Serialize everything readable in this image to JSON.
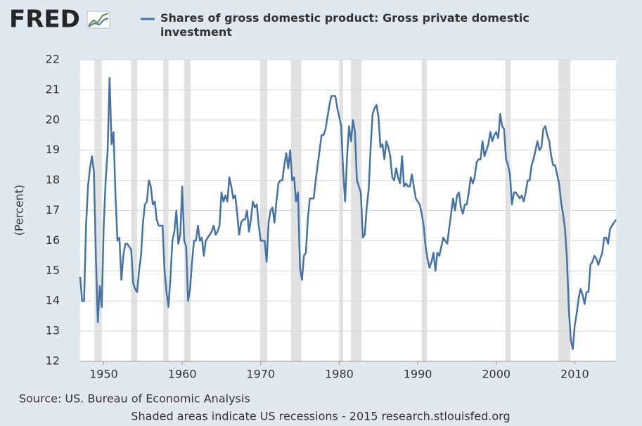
{
  "logo": "FRED",
  "chart_data": {
    "type": "line",
    "ylabel": "(Percent)",
    "source": "Source: US. Bureau of Economic Analysis",
    "note": "Shaded areas indicate US recessions - 2015 research.stlouisfed.org",
    "xlim": [
      1947,
      2015.25
    ],
    "xticks": [
      1950,
      1960,
      1970,
      1980,
      1990,
      2000,
      2010
    ],
    "ylim": [
      12,
      22
    ],
    "yticks": [
      12,
      13,
      14,
      15,
      16,
      17,
      18,
      19,
      20,
      21,
      22
    ],
    "grid": true,
    "recession_color": "#e1e1e1",
    "recessions": [
      [
        1948.83,
        1949.75
      ],
      [
        1953.5,
        1954.25
      ],
      [
        1957.58,
        1958.25
      ],
      [
        1960.25,
        1961.08
      ],
      [
        1969.92,
        1970.83
      ],
      [
        1973.83,
        1975.17
      ],
      [
        1980.0,
        1980.5
      ],
      [
        1981.5,
        1982.83
      ],
      [
        1990.5,
        1991.17
      ],
      [
        2001.17,
        2001.83
      ],
      [
        2007.92,
        2009.42
      ]
    ],
    "x": [
      1947,
      1947.25,
      1947.5,
      1947.75,
      1948,
      1948.25,
      1948.5,
      1948.75,
      1949,
      1949.25,
      1949.5,
      1949.75,
      1950,
      1950.25,
      1950.5,
      1950.75,
      1951,
      1951.25,
      1951.5,
      1951.75,
      1952,
      1952.25,
      1952.5,
      1952.75,
      1953,
      1953.25,
      1953.5,
      1953.75,
      1954,
      1954.25,
      1954.5,
      1954.75,
      1955,
      1955.25,
      1955.5,
      1955.75,
      1956,
      1956.25,
      1956.5,
      1956.75,
      1957,
      1957.25,
      1957.5,
      1957.75,
      1958,
      1958.25,
      1958.5,
      1958.75,
      1959,
      1959.25,
      1959.5,
      1959.75,
      1960,
      1960.25,
      1960.5,
      1960.75,
      1961,
      1961.25,
      1961.5,
      1961.75,
      1962,
      1962.25,
      1962.5,
      1962.75,
      1963,
      1963.25,
      1963.5,
      1963.75,
      1964,
      1964.25,
      1964.5,
      1964.75,
      1965,
      1965.25,
      1965.5,
      1965.75,
      1966,
      1966.25,
      1966.5,
      1966.75,
      1967,
      1967.25,
      1967.5,
      1967.75,
      1968,
      1968.25,
      1968.5,
      1968.75,
      1969,
      1969.25,
      1969.5,
      1969.75,
      1970,
      1970.25,
      1970.5,
      1970.75,
      1971,
      1971.25,
      1971.5,
      1971.75,
      1972,
      1972.25,
      1972.5,
      1972.75,
      1973,
      1973.25,
      1973.5,
      1973.75,
      1974,
      1974.25,
      1974.5,
      1974.75,
      1975,
      1975.25,
      1975.5,
      1975.75,
      1976,
      1976.25,
      1976.5,
      1976.75,
      1977,
      1977.25,
      1977.5,
      1977.75,
      1978,
      1978.25,
      1978.5,
      1978.75,
      1979,
      1979.25,
      1979.5,
      1979.75,
      1980,
      1980.25,
      1980.5,
      1980.75,
      1981,
      1981.25,
      1981.5,
      1981.75,
      1982,
      1982.25,
      1982.5,
      1982.75,
      1983,
      1983.25,
      1983.5,
      1983.75,
      1984,
      1984.25,
      1984.5,
      1984.75,
      1985,
      1985.25,
      1985.5,
      1985.75,
      1986,
      1986.25,
      1986.5,
      1986.75,
      1987,
      1987.25,
      1987.5,
      1987.75,
      1988,
      1988.25,
      1988.5,
      1988.75,
      1989,
      1989.25,
      1989.5,
      1989.75,
      1990,
      1990.25,
      1990.5,
      1990.75,
      1991,
      1991.25,
      1991.5,
      1991.75,
      1992,
      1992.25,
      1992.5,
      1992.75,
      1993,
      1993.25,
      1993.5,
      1993.75,
      1994,
      1994.25,
      1994.5,
      1994.75,
      1995,
      1995.25,
      1995.5,
      1995.75,
      1996,
      1996.25,
      1996.5,
      1996.75,
      1997,
      1997.25,
      1997.5,
      1997.75,
      1998,
      1998.25,
      1998.5,
      1998.75,
      1999,
      1999.25,
      1999.5,
      1999.75,
      2000,
      2000.25,
      2000.5,
      2000.75,
      2001,
      2001.25,
      2001.5,
      2001.75,
      2002,
      2002.25,
      2002.5,
      2002.75,
      2003,
      2003.25,
      2003.5,
      2003.75,
      2004,
      2004.25,
      2004.5,
      2004.75,
      2005,
      2005.25,
      2005.5,
      2005.75,
      2006,
      2006.25,
      2006.5,
      2006.75,
      2007,
      2007.25,
      2007.5,
      2007.75,
      2008,
      2008.25,
      2008.5,
      2008.75,
      2009,
      2009.25,
      2009.5,
      2009.75,
      2010,
      2010.25,
      2010.5,
      2010.75,
      2011,
      2011.25,
      2011.5,
      2011.75,
      2012,
      2012.25,
      2012.5,
      2012.75,
      2013,
      2013.25,
      2013.5,
      2013.75,
      2014,
      2014.25,
      2014.5,
      2014.75,
      2015,
      2015.25
    ],
    "series": [
      {
        "name": "Shares of gross domestic product: Gross private domestic investment",
        "color": "#4572a7",
        "values": [
          14.8,
          14.0,
          14.0,
          16.5,
          17.8,
          18.4,
          18.8,
          18.3,
          15.5,
          13.3,
          14.5,
          13.8,
          16.5,
          18.0,
          19.0,
          21.4,
          19.2,
          19.6,
          17.5,
          16.0,
          16.1,
          14.7,
          15.5,
          15.9,
          15.9,
          15.8,
          15.7,
          14.6,
          14.4,
          14.3,
          15.0,
          15.5,
          16.6,
          17.2,
          17.3,
          18.0,
          17.8,
          17.2,
          17.3,
          16.7,
          16.5,
          16.5,
          16.5,
          15.0,
          14.3,
          13.8,
          14.8,
          16.0,
          16.3,
          17.0,
          15.9,
          16.2,
          17.8,
          16.0,
          15.8,
          14.0,
          14.4,
          15.3,
          16.0,
          16.0,
          16.5,
          16.0,
          16.1,
          15.5,
          16.0,
          16.1,
          16.2,
          16.3,
          16.5,
          16.2,
          16.3,
          16.5,
          17.6,
          17.3,
          17.5,
          17.3,
          18.1,
          17.8,
          17.4,
          17.5,
          16.9,
          16.2,
          16.6,
          16.7,
          16.7,
          17.0,
          16.3,
          16.7,
          17.3,
          17.1,
          17.2,
          16.5,
          16.0,
          16.0,
          16.0,
          15.3,
          16.6,
          17.0,
          17.1,
          16.6,
          17.3,
          17.9,
          18.0,
          18.0,
          18.5,
          18.9,
          18.4,
          19.0,
          18.0,
          18.1,
          17.3,
          17.6,
          15.1,
          14.7,
          15.5,
          15.6,
          16.7,
          17.4,
          17.4,
          17.4,
          18.0,
          18.5,
          19.0,
          19.5,
          19.5,
          19.7,
          20.1,
          20.5,
          20.8,
          20.8,
          20.8,
          20.4,
          20.1,
          19.8,
          18.3,
          17.3,
          18.8,
          19.8,
          19.3,
          20.0,
          19.6,
          18.0,
          17.8,
          17.6,
          16.1,
          16.2,
          17.1,
          17.7,
          19.1,
          20.2,
          20.4,
          20.5,
          20.1,
          19.1,
          19.2,
          18.7,
          19.3,
          19.1,
          18.8,
          18.1,
          18.0,
          18.4,
          18.1,
          17.9,
          18.8,
          17.8,
          17.9,
          17.8,
          17.8,
          18.2,
          17.8,
          17.4,
          17.3,
          17.2,
          16.9,
          16.5,
          15.8,
          15.4,
          15.1,
          15.3,
          15.6,
          15.0,
          15.6,
          15.5,
          15.8,
          16.1,
          16.0,
          15.9,
          16.4,
          16.9,
          17.4,
          17.0,
          17.5,
          17.6,
          17.1,
          16.9,
          17.2,
          17.2,
          17.6,
          18.1,
          17.9,
          18.1,
          18.6,
          18.7,
          18.7,
          19.3,
          18.8,
          19.0,
          19.2,
          19.6,
          19.3,
          19.5,
          19.6,
          19.4,
          20.2,
          19.8,
          19.7,
          18.7,
          18.5,
          18.2,
          17.2,
          17.6,
          17.6,
          17.5,
          17.4,
          17.5,
          17.3,
          17.6,
          18.0,
          18.0,
          18.5,
          18.7,
          19.0,
          19.3,
          19.0,
          19.1,
          19.7,
          19.8,
          19.5,
          19.3,
          18.8,
          18.5,
          18.5,
          18.2,
          17.9,
          17.3,
          16.9,
          16.4,
          15.4,
          13.7,
          12.7,
          12.4,
          13.2,
          13.6,
          14.1,
          14.4,
          14.2,
          13.9,
          14.3,
          14.3,
          15.2,
          15.3,
          15.5,
          15.4,
          15.2,
          15.4,
          15.6,
          16.1,
          16.1,
          15.9,
          16.4,
          16.5,
          16.6,
          16.7
        ]
      }
    ]
  }
}
